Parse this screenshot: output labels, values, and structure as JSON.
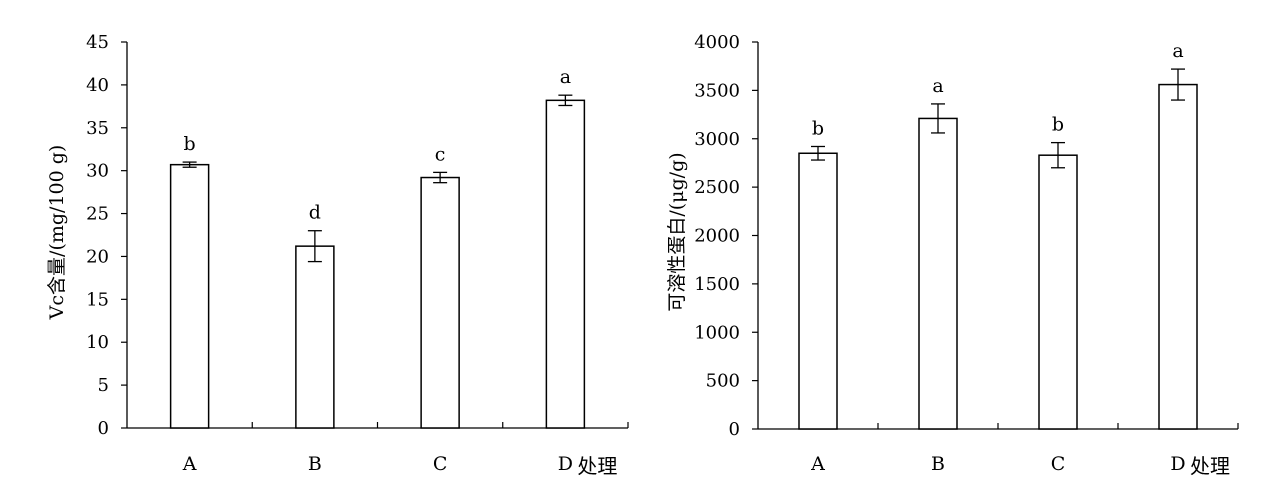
{
  "chart_data": [
    {
      "type": "bar",
      "categories": [
        "A",
        "B",
        "C",
        "D"
      ],
      "category_suffix": "处理",
      "values": [
        30.7,
        21.2,
        29.2,
        38.2
      ],
      "errors": [
        0.3,
        1.8,
        0.6,
        0.6
      ],
      "significance": [
        "b",
        "d",
        "c",
        "a"
      ],
      "ylabel": "Vc含量/(mg/100 g)",
      "ylim": [
        0,
        45
      ],
      "yticks": [
        "0",
        "5",
        "10",
        "15",
        "20",
        "25",
        "30",
        "35",
        "40",
        "45"
      ],
      "grid": false,
      "bar_fill": "#ffffff",
      "stroke": "#000000"
    },
    {
      "type": "bar",
      "categories": [
        "A",
        "B",
        "C",
        "D"
      ],
      "category_suffix": "处理",
      "values": [
        2850,
        3210,
        2830,
        3560
      ],
      "errors": [
        70,
        150,
        130,
        160
      ],
      "significance": [
        "b",
        "a",
        "b",
        "a"
      ],
      "ylabel": "可溶性蛋白/(μg/g)",
      "ylim": [
        0,
        4000
      ],
      "yticks": [
        "0",
        "500",
        "1000",
        "1500",
        "2000",
        "2500",
        "3000",
        "3500",
        "4000"
      ],
      "grid": false,
      "bar_fill": "#ffffff",
      "stroke": "#000000"
    }
  ]
}
